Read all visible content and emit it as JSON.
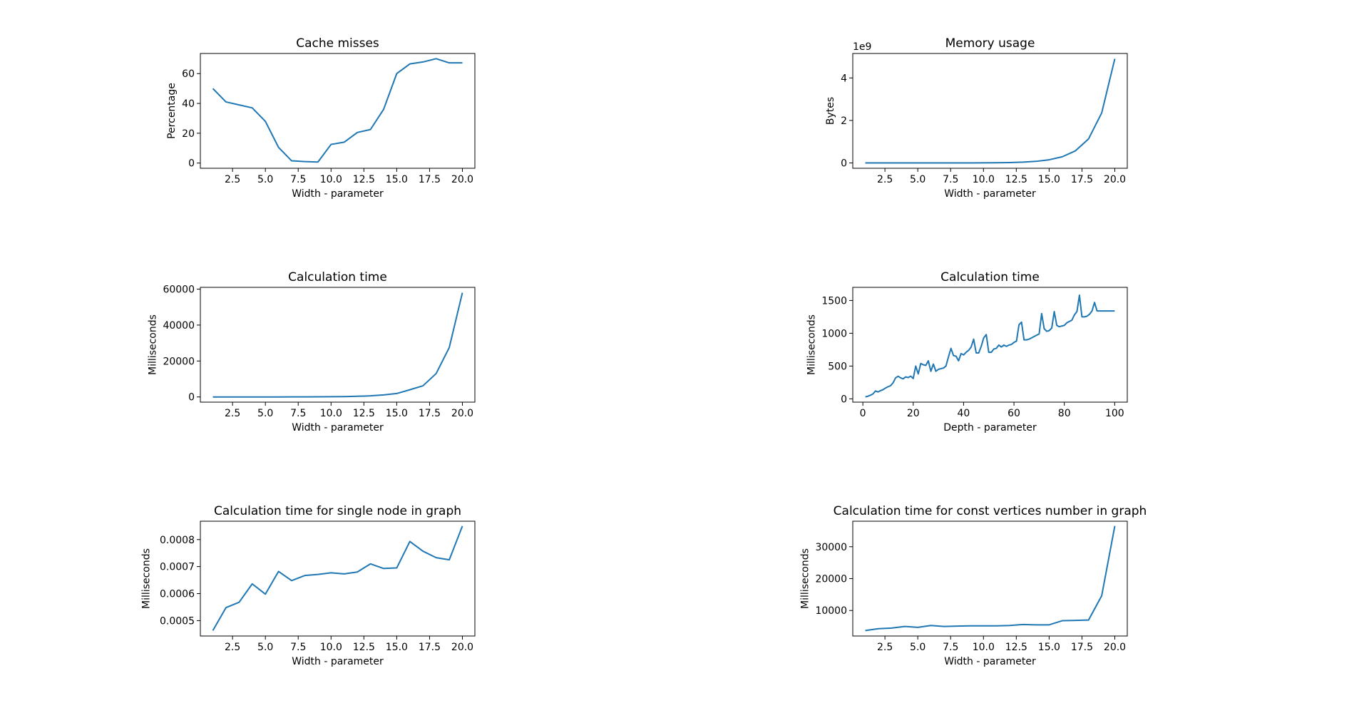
{
  "chart_data": [
    {
      "type": "line",
      "title": "Cache misses",
      "xlabel": "Width - parameter",
      "ylabel": "Percentage",
      "xlim": [
        0.05,
        20.95
      ],
      "ylim": [
        -3.5,
        73.5
      ],
      "xticks": [
        2.5,
        5.0,
        7.5,
        10.0,
        12.5,
        15.0,
        17.5,
        20.0
      ],
      "xtick_labels": [
        "2.5",
        "5.0",
        "7.5",
        "10.0",
        "12.5",
        "15.0",
        "17.5",
        "20.0"
      ],
      "yticks": [
        0,
        20,
        40,
        60
      ],
      "ytick_labels": [
        "0",
        "20",
        "40",
        "60"
      ],
      "y_offset_label": "",
      "grid": false,
      "color": "#1f77b4",
      "series": [
        {
          "x": [
            1,
            2,
            3,
            4,
            5,
            6,
            7,
            8,
            9,
            10,
            11,
            12,
            13,
            14,
            15,
            16,
            17,
            18,
            19,
            20
          ],
          "y": [
            50,
            41,
            39,
            37,
            28,
            10.5,
            1.5,
            1,
            0.7,
            12.5,
            14,
            20.5,
            22.5,
            36,
            60,
            66.5,
            67.8,
            70,
            67.2,
            67.2
          ]
        }
      ]
    },
    {
      "type": "line",
      "title": "Memory usage",
      "xlabel": "Width - parameter",
      "ylabel": "Bytes",
      "xlim": [
        0.05,
        20.95
      ],
      "ylim": [
        -0.25,
        5.15
      ],
      "xticks": [
        2.5,
        5.0,
        7.5,
        10.0,
        12.5,
        15.0,
        17.5,
        20.0
      ],
      "xtick_labels": [
        "2.5",
        "5.0",
        "7.5",
        "10.0",
        "12.5",
        "15.0",
        "17.5",
        "20.0"
      ],
      "yticks": [
        0,
        2,
        4
      ],
      "ytick_labels": [
        "0",
        "2",
        "4"
      ],
      "y_offset_label": "1e9",
      "grid": false,
      "color": "#1f77b4",
      "series": [
        {
          "x": [
            1,
            2,
            3,
            4,
            5,
            6,
            7,
            8,
            9,
            10,
            11,
            12,
            13,
            14,
            15,
            16,
            17,
            18,
            19,
            20
          ],
          "y": [
            0.0,
            0.0,
            0.0,
            0.0,
            0.0,
            0.0,
            0.0,
            0.0,
            0.0,
            0.005,
            0.01,
            0.02,
            0.04,
            0.075,
            0.15,
            0.29,
            0.57,
            1.13,
            2.35,
            4.9
          ]
        }
      ]
    },
    {
      "type": "line",
      "title": "Calculation time",
      "xlabel": "Width - parameter",
      "ylabel": "Milliseconds",
      "xlim": [
        0.05,
        20.95
      ],
      "ylim": [
        -2900,
        61000
      ],
      "xticks": [
        2.5,
        5.0,
        7.5,
        10.0,
        12.5,
        15.0,
        17.5,
        20.0
      ],
      "xtick_labels": [
        "2.5",
        "5.0",
        "7.5",
        "10.0",
        "12.5",
        "15.0",
        "17.5",
        "20.0"
      ],
      "yticks": [
        0,
        20000,
        40000,
        60000
      ],
      "ytick_labels": [
        "0",
        "20000",
        "40000",
        "60000"
      ],
      "y_offset_label": "",
      "grid": false,
      "color": "#1f77b4",
      "series": [
        {
          "x": [
            1,
            2,
            3,
            4,
            5,
            6,
            7,
            8,
            9,
            10,
            11,
            12,
            13,
            14,
            15,
            16,
            17,
            18,
            19,
            20
          ],
          "y": [
            0,
            0,
            0,
            0,
            0,
            0,
            20,
            40,
            80,
            120,
            200,
            350,
            600,
            1100,
            1900,
            4000,
            6200,
            13000,
            27500,
            58000
          ]
        }
      ]
    },
    {
      "type": "line",
      "title": "Calculation time",
      "xlabel": "Depth - parameter",
      "ylabel": "Milliseconds",
      "xlim": [
        -4,
        105
      ],
      "ylim": [
        -50,
        1700
      ],
      "xticks": [
        0,
        20,
        40,
        60,
        80,
        100
      ],
      "xtick_labels": [
        "0",
        "20",
        "40",
        "60",
        "80",
        "100"
      ],
      "yticks": [
        0,
        500,
        1000,
        1500
      ],
      "ytick_labels": [
        "0",
        "500",
        "1000",
        "1500"
      ],
      "y_offset_label": "",
      "grid": false,
      "color": "#1f77b4",
      "series": [
        {
          "x": [
            1,
            2,
            3,
            4,
            5,
            6,
            7,
            8,
            9,
            10,
            11,
            12,
            13,
            14,
            15,
            16,
            17,
            18,
            19,
            20,
            21,
            22,
            23,
            24,
            25,
            26,
            27,
            28,
            29,
            30,
            31,
            32,
            33,
            34,
            35,
            36,
            37,
            38,
            39,
            40,
            41,
            42,
            43,
            44,
            45,
            46,
            47,
            48,
            49,
            50,
            51,
            52,
            53,
            54,
            55,
            56,
            57,
            58,
            59,
            60,
            61,
            62,
            63,
            64,
            65,
            66,
            67,
            68,
            69,
            70,
            71,
            72,
            73,
            74,
            75,
            76,
            77,
            78,
            79,
            80,
            81,
            82,
            83,
            84,
            85,
            86,
            87,
            88,
            89,
            90,
            91,
            92,
            93,
            94,
            95,
            96,
            97,
            98,
            99,
            100
          ],
          "y": [
            30,
            40,
            55,
            75,
            120,
            105,
            125,
            140,
            165,
            185,
            200,
            245,
            320,
            345,
            320,
            305,
            335,
            325,
            345,
            310,
            500,
            380,
            540,
            520,
            510,
            580,
            420,
            530,
            420,
            450,
            460,
            470,
            500,
            640,
            770,
            660,
            650,
            580,
            690,
            670,
            710,
            740,
            790,
            910,
            700,
            700,
            800,
            930,
            980,
            710,
            710,
            760,
            770,
            820,
            790,
            820,
            800,
            820,
            830,
            860,
            880,
            1130,
            1170,
            900,
            900,
            910,
            930,
            950,
            970,
            990,
            1300,
            1070,
            1030,
            1040,
            1080,
            1330,
            1120,
            1100,
            1110,
            1120,
            1160,
            1180,
            1200,
            1280,
            1330,
            1580,
            1250,
            1250,
            1260,
            1290,
            1340,
            1470,
            1340,
            1340,
            1340,
            1340,
            1340,
            1340,
            1340,
            1340
          ]
        }
      ]
    },
    {
      "type": "line",
      "title": "Calculation time for single node in graph",
      "xlabel": "Width - parameter",
      "ylabel": "Milliseconds",
      "xlim": [
        0.05,
        20.95
      ],
      "ylim": [
        0.000443,
        0.000868
      ],
      "xticks": [
        2.5,
        5.0,
        7.5,
        10.0,
        12.5,
        15.0,
        17.5,
        20.0
      ],
      "xtick_labels": [
        "2.5",
        "5.0",
        "7.5",
        "10.0",
        "12.5",
        "15.0",
        "17.5",
        "20.0"
      ],
      "yticks": [
        0.0005,
        0.0006,
        0.0007,
        0.0008
      ],
      "ytick_labels": [
        "0.0005",
        "0.0006",
        "0.0007",
        "0.0008"
      ],
      "y_offset_label": "",
      "grid": false,
      "color": "#1f77b4",
      "series": [
        {
          "x": [
            1,
            2,
            3,
            4,
            5,
            6,
            7,
            8,
            9,
            10,
            11,
            12,
            13,
            14,
            15,
            16,
            17,
            18,
            19,
            20
          ],
          "y": [
            0.000463,
            0.000548,
            0.000568,
            0.000636,
            0.000598,
            0.000682,
            0.000648,
            0.000667,
            0.000671,
            0.000677,
            0.000673,
            0.00068,
            0.00071,
            0.000693,
            0.000695,
            0.000793,
            0.000757,
            0.000733,
            0.000725,
            0.00085
          ]
        }
      ]
    },
    {
      "type": "line",
      "title": "Calculation time for const vertices number in graph",
      "xlabel": "Width - parameter",
      "ylabel": "Milliseconds",
      "xlim": [
        0.05,
        20.95
      ],
      "ylim": [
        2000,
        38000
      ],
      "xticks": [
        2.5,
        5.0,
        7.5,
        10.0,
        12.5,
        15.0,
        17.5,
        20.0
      ],
      "xtick_labels": [
        "2.5",
        "5.0",
        "7.5",
        "10.0",
        "12.5",
        "15.0",
        "17.5",
        "20.0"
      ],
      "yticks": [
        10000,
        20000,
        30000
      ],
      "ytick_labels": [
        "10000",
        "20000",
        "30000"
      ],
      "y_offset_label": "",
      "grid": false,
      "color": "#1f77b4",
      "series": [
        {
          "x": [
            1,
            2,
            3,
            4,
            5,
            6,
            7,
            8,
            9,
            10,
            11,
            12,
            13,
            14,
            15,
            16,
            17,
            18,
            19,
            20
          ],
          "y": [
            3700,
            4300,
            4500,
            5000,
            4700,
            5300,
            5000,
            5100,
            5200,
            5200,
            5200,
            5300,
            5600,
            5500,
            5500,
            6800,
            6900,
            7000,
            14600,
            36500
          ]
        }
      ]
    }
  ]
}
